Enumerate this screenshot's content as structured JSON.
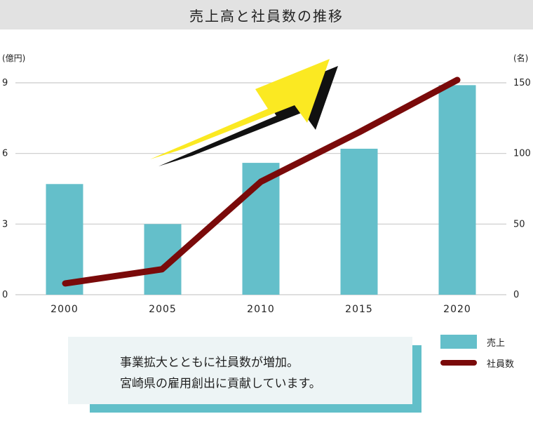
{
  "colors": {
    "bar": "#64bfca",
    "line": "#7a0a0a",
    "grid": "#c9c9c9",
    "arrow_fill": "#fbe922",
    "arrow_shadow": "#111111",
    "title_bg": "#e2e2e2",
    "callout_bg": "#edf4f5",
    "callout_shadow": "#62bfc9"
  },
  "chart_data": {
    "type": "bar+line",
    "title": "売上高と社員数の推移",
    "categories": [
      "2000",
      "2005",
      "2010",
      "2015",
      "2020"
    ],
    "left_axis": {
      "unit": "(億円)",
      "ticks": [
        "0",
        "3",
        "6",
        "9"
      ],
      "ylim": [
        0,
        9
      ]
    },
    "right_axis": {
      "unit": "(名)",
      "ticks": [
        "0",
        "50",
        "100",
        "150"
      ],
      "ylim": [
        0,
        150
      ]
    },
    "series": [
      {
        "name": "売上",
        "type": "bar",
        "axis": "left",
        "values": [
          4.7,
          3.0,
          5.6,
          6.2,
          8.9
        ]
      },
      {
        "name": "社員数",
        "type": "line",
        "axis": "right",
        "values": [
          8,
          18,
          80,
          115,
          152
        ]
      }
    ],
    "grid": true,
    "legend_position": "bottom-right",
    "annotation": "upward-arrow"
  },
  "callout": {
    "line1": "事業拡大とともに社員数が増加。",
    "line2": "宮崎県の雇用創出に貢献しています。"
  }
}
